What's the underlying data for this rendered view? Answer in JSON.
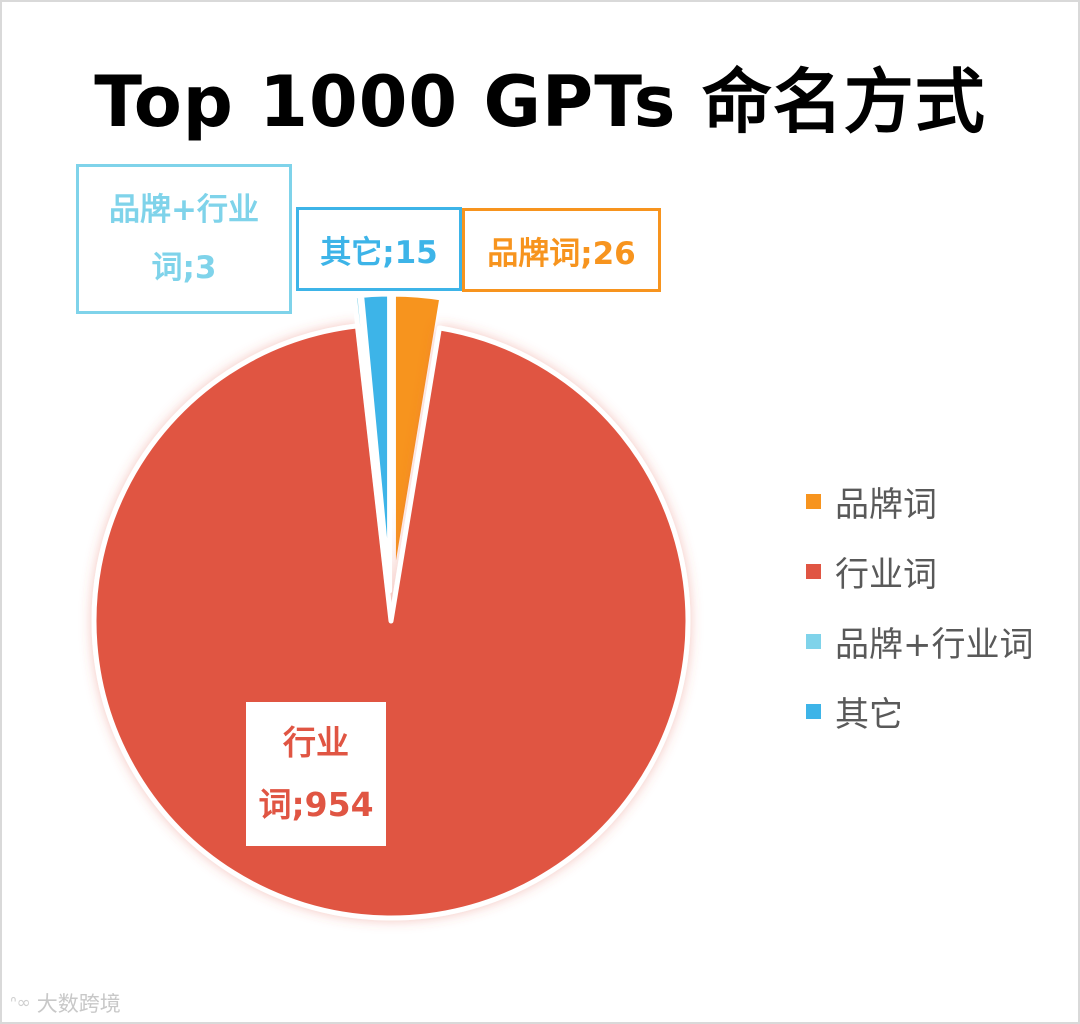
{
  "title": "Top 1000 GPTs 命名方式",
  "chart_data": {
    "type": "pie",
    "title": "Top 1000 GPTs 命名方式",
    "categories": [
      "品牌词",
      "行业词",
      "品牌+行业词",
      "其它"
    ],
    "values": [
      26,
      954,
      3,
      15
    ],
    "colors": [
      "#f7941e",
      "#e05543",
      "#7fd3ea",
      "#3db4e8"
    ],
    "exploded": [
      true,
      false,
      true,
      true
    ],
    "start_angle_deg": 0,
    "direction": "clockwise",
    "data_labels": [
      "品牌词;26",
      "行业词;954",
      "品牌+行业词;3",
      "其它;15"
    ],
    "legend_position": "right"
  },
  "labels": {
    "brand": "品牌词;26",
    "other": "其它;15",
    "both_line1": "品牌+行业",
    "both_line2": "词;3",
    "industry_line1": "行业",
    "industry_line2": "词;954"
  },
  "legend": {
    "items": [
      {
        "label": "品牌词",
        "color": "#f7941e"
      },
      {
        "label": "行业词",
        "color": "#e05543"
      },
      {
        "label": "品牌+行业词",
        "color": "#7fd3ea"
      },
      {
        "label": "其它",
        "color": "#3db4e8"
      }
    ]
  },
  "watermark": {
    "logo": "ᐢ∞",
    "text": "大数跨境"
  }
}
